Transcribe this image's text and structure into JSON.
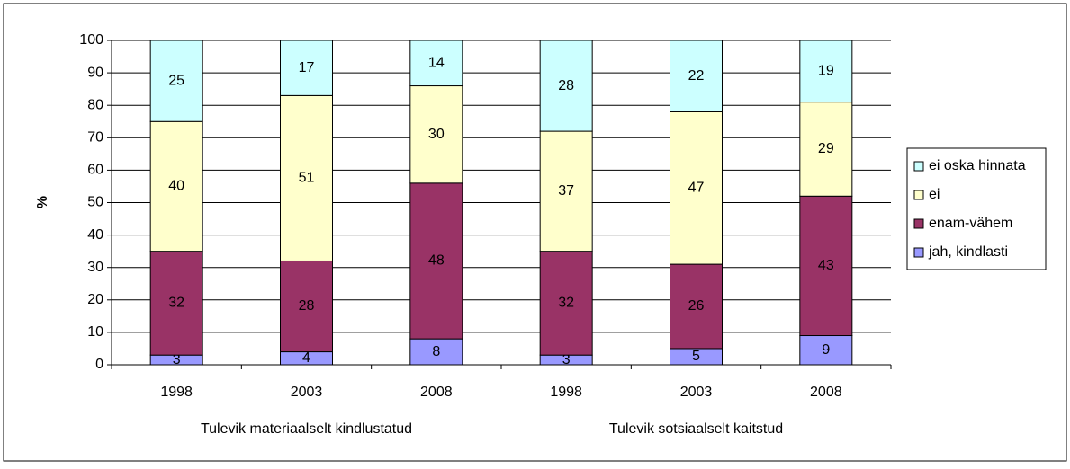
{
  "chart_data": {
    "type": "stacked_bar",
    "y_label": "%",
    "categories": [
      "1998",
      "2003",
      "2008",
      "1998",
      "2003",
      "2008"
    ],
    "group_labels": [
      "Tulevik materiaalselt kindlustatud",
      "Tulevik sotsiaalselt kaitstud"
    ],
    "series": [
      {
        "name": "jah, kindlasti",
        "color": "#9999ff",
        "values": [
          3,
          4,
          8,
          3,
          5,
          9
        ]
      },
      {
        "name": "enam-vähem",
        "color": "#993366",
        "values": [
          32,
          28,
          48,
          32,
          26,
          43
        ]
      },
      {
        "name": "ei",
        "color": "#ffffcc",
        "values": [
          40,
          51,
          30,
          37,
          47,
          29
        ]
      },
      {
        "name": "ei oska hinnata",
        "color": "#ccffff",
        "values": [
          25,
          17,
          14,
          28,
          22,
          19
        ]
      }
    ],
    "ylim": [
      0,
      100
    ],
    "yticks": [
      0,
      10,
      20,
      30,
      40,
      50,
      60,
      70,
      80,
      90,
      100
    ],
    "grid": true,
    "legend": "right"
  }
}
